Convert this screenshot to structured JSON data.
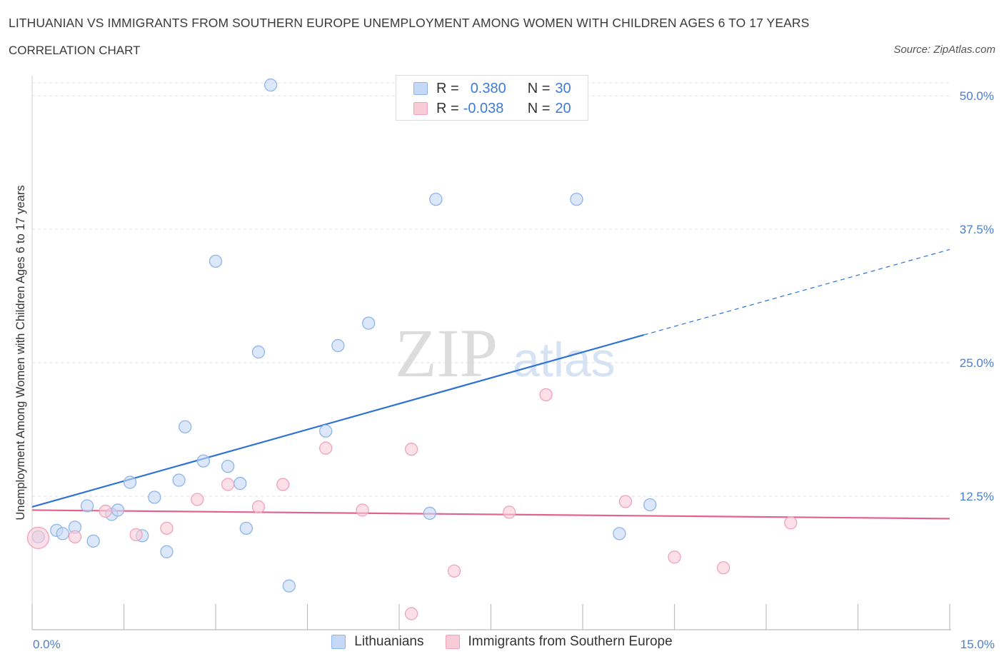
{
  "title": "LITHUANIAN VS IMMIGRANTS FROM SOUTHERN EUROPE UNEMPLOYMENT AMONG WOMEN WITH CHILDREN AGES 6 TO 17 YEARS",
  "subtitle": "CORRELATION CHART",
  "source": "Source: ZipAtlas.com",
  "watermark": {
    "zip": "ZIP",
    "atlas": "atlas"
  },
  "legend": {
    "rows": [
      {
        "r_label": "R =",
        "r_value": "0.380",
        "n_label": "N =",
        "n_value": "30"
      },
      {
        "r_label": "R =",
        "r_value": "-0.038",
        "n_label": "N =",
        "n_value": "20"
      }
    ]
  },
  "chart_data": {
    "type": "scatter",
    "ylabel": "Unemployment Among Women with Children Ages 6 to 17 years",
    "xlim": [
      0,
      15
    ],
    "ylim": [
      0,
      50
    ],
    "x_tick_labels": [
      "0.0%",
      "15.0%"
    ],
    "y_tick_labels": [
      "12.5%",
      "25.0%",
      "37.5%",
      "50.0%"
    ],
    "y_ticks": [
      12.5,
      25,
      37.5,
      50
    ],
    "grid": "horizontal dashed",
    "legend_position": "top-center",
    "series": [
      {
        "name": "Lithuanians",
        "color": "#8fb4ea",
        "fill": "#c5d9f6",
        "line_color": "#2e72d2",
        "points": [
          [
            0.1,
            8.7
          ],
          [
            0.4,
            9.3
          ],
          [
            0.5,
            9.0
          ],
          [
            0.7,
            9.6
          ],
          [
            0.9,
            11.6
          ],
          [
            1.0,
            8.3
          ],
          [
            1.3,
            10.8
          ],
          [
            1.4,
            11.2
          ],
          [
            1.6,
            13.8
          ],
          [
            1.8,
            8.8
          ],
          [
            2.0,
            12.4
          ],
          [
            2.2,
            7.3
          ],
          [
            2.4,
            14.0
          ],
          [
            2.5,
            19.0
          ],
          [
            2.8,
            15.8
          ],
          [
            3.0,
            34.5
          ],
          [
            3.2,
            15.3
          ],
          [
            3.4,
            13.7
          ],
          [
            3.5,
            9.5
          ],
          [
            3.7,
            26.0
          ],
          [
            3.9,
            51.0
          ],
          [
            4.2,
            4.1
          ],
          [
            4.8,
            18.6
          ],
          [
            5.0,
            26.6
          ],
          [
            5.5,
            28.7
          ],
          [
            6.5,
            10.9
          ],
          [
            6.6,
            40.3
          ],
          [
            8.9,
            40.3
          ],
          [
            9.6,
            9.0
          ],
          [
            10.1,
            11.7
          ]
        ],
        "trend": {
          "x": [
            0,
            10.0
          ],
          "y": [
            11.5,
            27.6
          ],
          "extend_x": [
            10.0,
            15.0
          ],
          "extend_y": [
            27.6,
            35.6
          ]
        }
      },
      {
        "name": "Immigrants from Southern Europe",
        "color": "#efa3bb",
        "fill": "#f8cbd9",
        "line_color": "#e2628f",
        "points": [
          [
            0.1,
            8.6
          ],
          [
            0.7,
            8.7
          ],
          [
            1.2,
            11.1
          ],
          [
            1.7,
            8.9
          ],
          [
            2.2,
            9.5
          ],
          [
            2.7,
            12.2
          ],
          [
            3.2,
            13.6
          ],
          [
            3.7,
            11.5
          ],
          [
            4.1,
            13.6
          ],
          [
            4.8,
            17.0
          ],
          [
            5.4,
            11.2
          ],
          [
            6.2,
            16.9
          ],
          [
            6.2,
            1.5
          ],
          [
            6.9,
            5.5
          ],
          [
            7.8,
            11.0
          ],
          [
            8.4,
            22.0
          ],
          [
            9.7,
            12.0
          ],
          [
            10.5,
            6.8
          ],
          [
            11.3,
            5.8
          ],
          [
            12.4,
            10.0
          ]
        ],
        "trend": {
          "x": [
            0,
            15.0
          ],
          "y": [
            11.2,
            10.4
          ]
        }
      }
    ]
  }
}
